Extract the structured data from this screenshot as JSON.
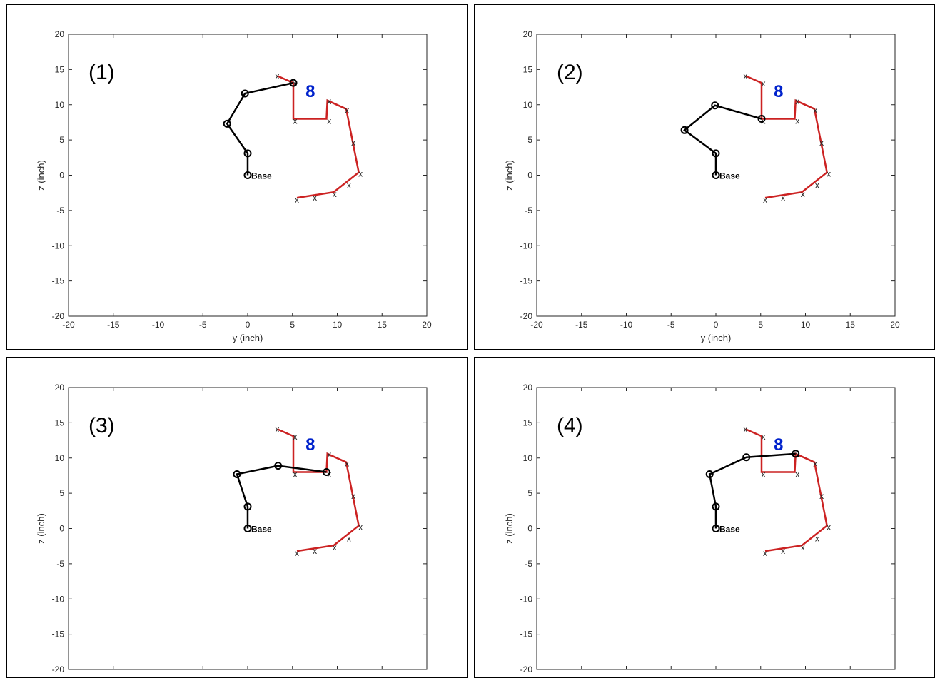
{
  "chart_data": [
    {
      "type": "line",
      "panel_label": "(1)",
      "xlabel": "y (inch)",
      "ylabel": "z (inch)",
      "xlim": [
        -20,
        20
      ],
      "ylim": [
        -20,
        20
      ],
      "xticks": [
        -20,
        -15,
        -10,
        -5,
        0,
        5,
        10,
        15,
        20
      ],
      "yticks": [
        20,
        15,
        10,
        5,
        0,
        -5,
        -10,
        -15,
        -20
      ],
      "show_xlabel": true,
      "arm": [
        [
          0,
          0
        ],
        [
          0,
          3.1
        ],
        [
          -2.3,
          7.3
        ],
        [
          -0.3,
          11.6
        ],
        [
          5.1,
          13.1
        ]
      ],
      "base_label": "Base",
      "marker_label": "8",
      "marker_pos": [
        7,
        12
      ]
    },
    {
      "type": "line",
      "panel_label": "(2)",
      "xlabel": "y (inch)",
      "ylabel": "z (inch)",
      "xlim": [
        -20,
        20
      ],
      "ylim": [
        -20,
        20
      ],
      "xticks": [
        -20,
        -15,
        -10,
        -5,
        0,
        5,
        10,
        15,
        20
      ],
      "yticks": [
        20,
        15,
        10,
        5,
        0,
        -5,
        -10,
        -15,
        -20
      ],
      "show_xlabel": true,
      "arm": [
        [
          0,
          0
        ],
        [
          0,
          3.1
        ],
        [
          -3.5,
          6.4
        ],
        [
          -0.1,
          9.9
        ],
        [
          5.1,
          8.0
        ]
      ],
      "base_label": "Base",
      "marker_label": "8",
      "marker_pos": [
        7,
        12
      ]
    },
    {
      "type": "line",
      "panel_label": "(3)",
      "xlabel": "",
      "ylabel": "z (inch)",
      "xlim": [
        -20,
        20
      ],
      "ylim": [
        -20,
        20
      ],
      "xticks": [],
      "yticks": [
        20,
        15,
        10,
        5,
        0,
        -5,
        -10,
        -15,
        -20
      ],
      "show_xlabel": false,
      "arm": [
        [
          0,
          0
        ],
        [
          0,
          3.1
        ],
        [
          -1.2,
          7.7
        ],
        [
          3.4,
          8.9
        ],
        [
          8.8,
          8.0
        ]
      ],
      "base_label": "Base",
      "marker_label": "8",
      "marker_pos": [
        7,
        12
      ]
    },
    {
      "type": "line",
      "panel_label": "(4)",
      "xlabel": "",
      "ylabel": "z (inch)",
      "xlim": [
        -20,
        20
      ],
      "ylim": [
        -20,
        20
      ],
      "xticks": [],
      "yticks": [
        20,
        15,
        10,
        5,
        0,
        -5,
        -10,
        -15,
        -20
      ],
      "show_xlabel": false,
      "arm": [
        [
          0,
          0
        ],
        [
          0,
          3.1
        ],
        [
          -0.7,
          7.7
        ],
        [
          3.4,
          10.1
        ],
        [
          8.9,
          10.6
        ]
      ],
      "base_label": "Base",
      "marker_label": "8",
      "marker_pos": [
        7,
        12
      ]
    }
  ],
  "shared": {
    "path_segments": [
      [
        [
          3.3,
          14.1
        ],
        [
          5.1,
          13.1
        ],
        [
          5.1,
          8.0
        ],
        [
          8.8,
          8.0
        ],
        [
          8.9,
          10.6
        ],
        [
          11.0,
          9.4
        ],
        [
          12.4,
          0.4
        ],
        [
          9.6,
          -2.4
        ],
        [
          5.5,
          -3.2
        ]
      ]
    ],
    "x_markers": [
      [
        3.3,
        14.1
      ],
      [
        5.3,
        13.0
      ],
      [
        5.3,
        7.7
      ],
      [
        9.1,
        7.7
      ],
      [
        9.1,
        10.5
      ],
      [
        11.1,
        9.2
      ],
      [
        11.8,
        4.6
      ],
      [
        12.6,
        0.2
      ],
      [
        11.3,
        -1.4
      ],
      [
        9.7,
        -2.7
      ],
      [
        7.5,
        -3.2
      ],
      [
        5.5,
        -3.5
      ]
    ],
    "arm_color": "#000000",
    "path_color": "#cc2222",
    "marker_color": "#0022cc"
  }
}
